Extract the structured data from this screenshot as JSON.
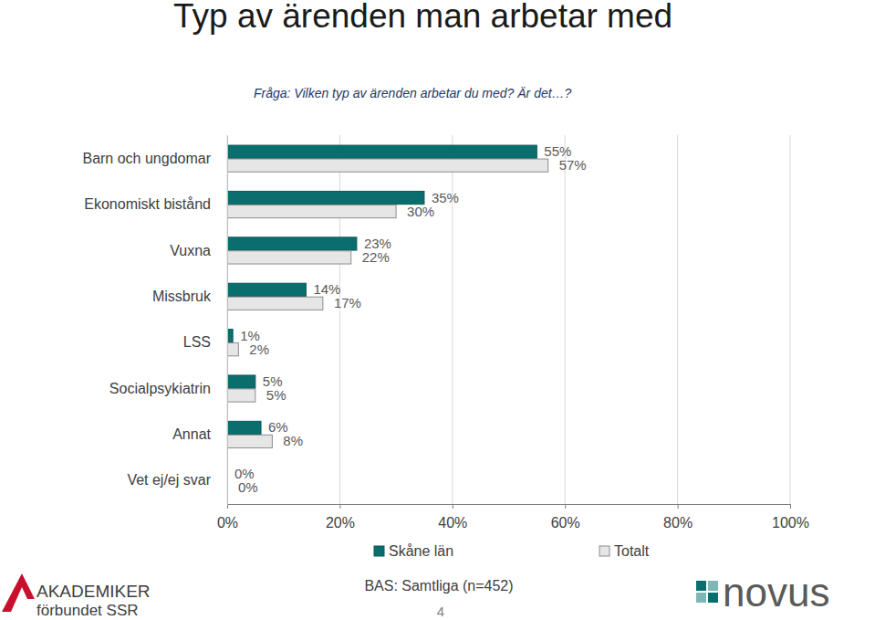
{
  "chart_data": {
    "type": "bar",
    "orientation": "horizontal",
    "title": "Typ av ärenden man arbetar med",
    "subtitle": "Fråga: Vilken typ av ärenden arbetar du med? Är det…?",
    "categories": [
      "Barn och ungdomar",
      "Ekonomiskt bistånd",
      "Vuxna",
      "Missbruk",
      "LSS",
      "Socialpsykiatrin",
      "Annat",
      "Vet ej/ej svar"
    ],
    "series": [
      {
        "name": "Skåne län",
        "color": "#0b6e6e",
        "values": [
          55,
          35,
          23,
          14,
          1,
          5,
          6,
          0
        ],
        "value_labels": [
          "55%",
          "35%",
          "23%",
          "14%",
          "1%",
          "5%",
          "6%",
          "0%"
        ]
      },
      {
        "name": "Totalt",
        "color": "#e6e6e6",
        "values": [
          57,
          30,
          22,
          17,
          2,
          5,
          8,
          0
        ],
        "value_labels": [
          "57%",
          "30%",
          "22%",
          "17%",
          "2%",
          "5%",
          "8%",
          "0%"
        ]
      }
    ],
    "xlim": [
      0,
      100
    ],
    "xticks": [
      {
        "value": 0,
        "label": "0%"
      },
      {
        "value": 20,
        "label": "20%"
      },
      {
        "value": 40,
        "label": "40%"
      },
      {
        "value": 60,
        "label": "60%"
      },
      {
        "value": 80,
        "label": "80%"
      },
      {
        "value": 100,
        "label": "100%"
      }
    ],
    "grid": true,
    "legend": "bottom",
    "data_labels": true,
    "annotations": [
      "BAS: Samtliga (n=452)",
      "4",
      "AKADEMIKER",
      "förbundet SSR",
      "novus"
    ]
  }
}
